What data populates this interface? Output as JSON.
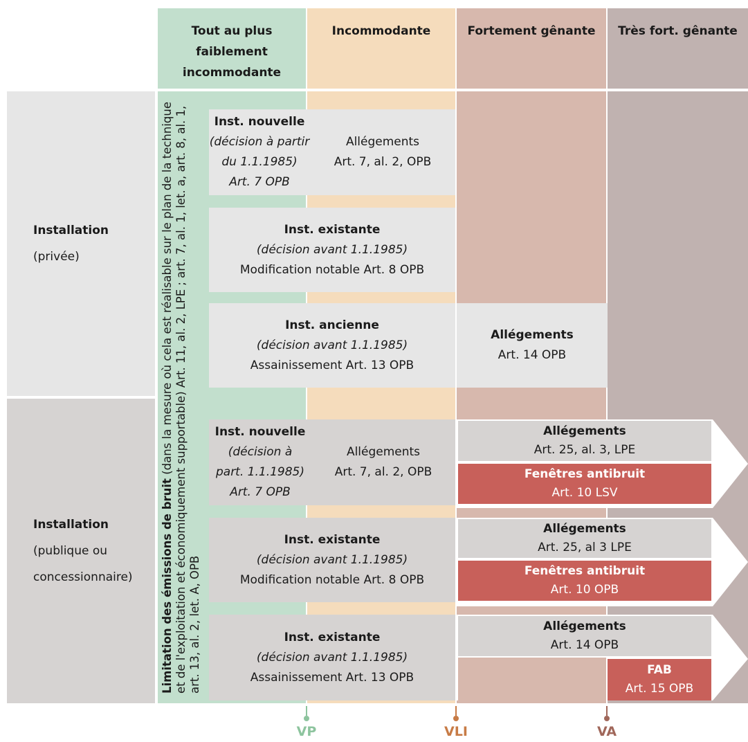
{
  "header": {
    "col1": "Tout au plus faiblement incommodante",
    "col2": "Incommodante",
    "col3": "Fortement gênante",
    "col4": "Très fort. gênante"
  },
  "rows": {
    "private": {
      "title": "Installation",
      "sub": "(privée)"
    },
    "public": {
      "title": "Installation",
      "sub1": "(publique ou",
      "sub2": "concessionnaire)"
    }
  },
  "vertical": {
    "bold": "Limitation des émissions de bruit",
    "text": " (dans la mesure où cela est réalisable sur le plan de la technique et de l'exploitation et économiquement supportable) Art. 11, al. 2, LPE ; art. 7, al. 1, let. a, art. 8, al. 1, art. 13, al. 2, let. A, OPB"
  },
  "boxes": {
    "p1": {
      "l1": "Inst. nouvelle",
      "l2": "(décision à partir",
      "l3": "du 1.1.1985)",
      "l4": "Art. 7 OPB"
    },
    "p1r": {
      "l1": "Allégements",
      "l2": "Art. 7, al. 2, OPB"
    },
    "p2": {
      "l1": "Inst. existante",
      "l2": "(décision avant 1.1.1985)",
      "l3": "Modification notable Art. 8 OPB"
    },
    "p3": {
      "l1": "Inst. ancienne",
      "l2": "(décision avant 1.1.1985)",
      "l3": "Assainissement Art. 13 OPB"
    },
    "p3r": {
      "l1": "Allégements",
      "l2": "Art. 14 OPB"
    },
    "q1": {
      "l1": "Inst. nouvelle",
      "l2": "(décision à",
      "l3": "part. 1.1.1985)",
      "l4": "Art. 7 OPB"
    },
    "q1r": {
      "l1": "Allégements",
      "l2": "Art. 7, al. 2, OPB"
    },
    "q1a": {
      "l1": "Allégements",
      "l2": "Art. 25, al. 3, LPE"
    },
    "q1f": {
      "l1": "Fenêtres antibruit",
      "l2": "Art. 10 LSV"
    },
    "q2": {
      "l1": "Inst. existante",
      "l2": "(décision avant 1.1.1985)",
      "l3": "Modification notable Art. 8 OPB"
    },
    "q2a": {
      "l1": "Allégements",
      "l2": "Art. 25, al 3 LPE"
    },
    "q2f": {
      "l1": "Fenêtres antibruit",
      "l2": "Art. 10 OPB"
    },
    "q3": {
      "l1": "Inst. existante",
      "l2": "(décision avant 1.1.1985)",
      "l3": "Assainissement Art. 13 OPB"
    },
    "q3a": {
      "l1": "Allégements",
      "l2": "Art. 14 OPB"
    },
    "q3f": {
      "l1": "FAB",
      "l2": "Art. 15 OPB"
    }
  },
  "markers": {
    "vp": "VP",
    "vli": "VLI",
    "va": "VA"
  },
  "colors": {
    "vp": "#8dc49e",
    "vli": "#c77b46",
    "va": "#a0675a"
  }
}
